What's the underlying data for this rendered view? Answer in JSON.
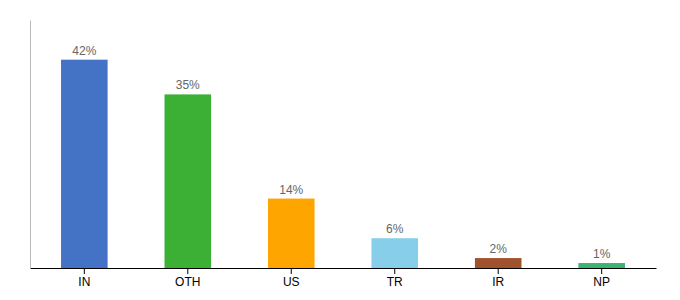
{
  "chart_data": {
    "type": "bar",
    "categories": [
      "IN",
      "OTH",
      "US",
      "TR",
      "IR",
      "NP"
    ],
    "values": [
      42,
      35,
      14,
      6,
      2,
      1
    ],
    "value_labels": [
      "42%",
      "35%",
      "14%",
      "6%",
      "2%",
      "1%"
    ],
    "colors": [
      "#4472C4",
      "#3CB034",
      "#FFA500",
      "#87CEEB",
      "#A0522D",
      "#3CB371"
    ],
    "ylim": [
      0,
      50
    ],
    "grid": false,
    "tick_labels": "x"
  }
}
